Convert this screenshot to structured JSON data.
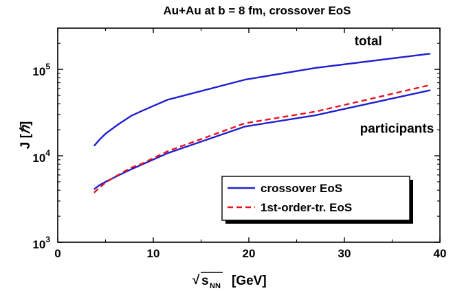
{
  "chart_data": {
    "type": "line",
    "title": "Au+Au at b = 8 fm, crossover EoS",
    "xlabel_sqrt": "√",
    "xlabel_s": "s",
    "xlabel_sub": "NN",
    "xlabel_unit": "[GeV]",
    "ylabel_main": "J [",
    "ylabel_hbar": "ℏ",
    "ylabel_close": "]",
    "xlim": [
      0,
      40
    ],
    "ylim": [
      1000,
      300000
    ],
    "yscale": "log",
    "x_ticks": [
      0,
      10,
      20,
      30,
      40
    ],
    "x_tick_labels": [
      "0",
      "10",
      "20",
      "30",
      "40"
    ],
    "y_ticks": [
      {
        "value": 1000,
        "base": "10",
        "exp": "3"
      },
      {
        "value": 10000,
        "base": "10",
        "exp": "4"
      },
      {
        "value": 100000,
        "base": "10",
        "exp": "5"
      }
    ],
    "annotations": [
      {
        "text": "total",
        "x": 32.5,
        "y": 190000
      },
      {
        "text": "participants",
        "x": 35.5,
        "y": 18500
      }
    ],
    "series": [
      {
        "name": "crossover EoS",
        "group": "total",
        "color": "#1f1fd0",
        "dash": "solid",
        "x": [
          3.8,
          4.4,
          5.0,
          6.3,
          7.7,
          8.8,
          11.5,
          19.6,
          27.0,
          39.0
        ],
        "y": [
          13000,
          15500,
          18000,
          23000,
          29000,
          33000,
          44500,
          76000,
          104000,
          152000
        ]
      },
      {
        "name": "crossover EoS",
        "group": "participants",
        "color": "#1f1fd0",
        "dash": "solid",
        "x": [
          3.8,
          4.4,
          5.0,
          6.3,
          7.7,
          8.8,
          11.5,
          19.6,
          27.0,
          39.0
        ],
        "y": [
          4100,
          4600,
          5000,
          5900,
          7000,
          7900,
          10700,
          21800,
          29500,
          57500
        ]
      },
      {
        "name": "1st-order-tr. EoS",
        "group": "participants",
        "color": "#e8141c",
        "dash": "dashed",
        "x": [
          3.8,
          4.4,
          5.0,
          6.3,
          7.7,
          8.8,
          11.5,
          19.6,
          27.0,
          39.0
        ],
        "y": [
          3750,
          4300,
          4900,
          6000,
          7300,
          8100,
          11300,
          23800,
          32500,
          66000
        ]
      }
    ],
    "legend": {
      "placement": "bottom-right",
      "entries": [
        {
          "label": "crossover EoS",
          "color": "#1f1fd0",
          "dash": "solid"
        },
        {
          "label": "1st-order-tr. EoS",
          "color": "#e8141c",
          "dash": "dashed"
        }
      ]
    }
  }
}
